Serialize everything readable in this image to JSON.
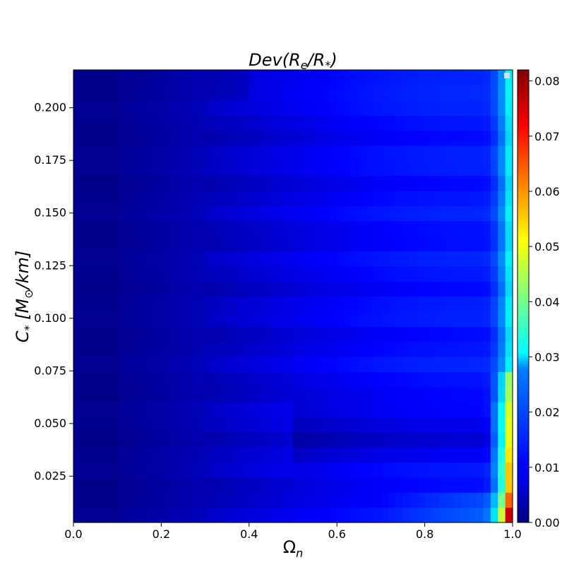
{
  "chart_data": {
    "type": "heatmap",
    "title": "Dev(R_e/R_*)",
    "title_parts": {
      "main": "Dev(R",
      "sub1": "e",
      "mid": "/R",
      "sub2": "*",
      "end": ")"
    },
    "xlabel_parts": {
      "main": "Ω",
      "sub": "n"
    },
    "ylabel_parts": {
      "main": "C",
      "sub": "*",
      "rest": " [M",
      "sub2": "⊙",
      "end": "/km]"
    },
    "xlim": [
      0.0,
      1.0
    ],
    "ylim": [
      0.003,
      0.218
    ],
    "x_ticks": [
      0.0,
      0.2,
      0.4,
      0.6,
      0.8,
      1.0
    ],
    "x_tick_labels": [
      "0.0",
      "0.2",
      "0.4",
      "0.6",
      "0.8",
      "1.0"
    ],
    "y_ticks": [
      0.025,
      0.05,
      0.075,
      0.1,
      0.125,
      0.15,
      0.175,
      0.2
    ],
    "y_tick_labels": [
      "0.025",
      "0.050",
      "0.075",
      "0.100",
      "0.125",
      "0.150",
      "0.175",
      "0.200"
    ],
    "colorbar": {
      "colormap": "jet",
      "range": [
        0.0,
        0.082
      ],
      "ticks": [
        0.0,
        0.01,
        0.02,
        0.03,
        0.04,
        0.05,
        0.06,
        0.07,
        0.08
      ],
      "tick_labels": [
        "0.00",
        "0.01",
        "0.02",
        "0.03",
        "0.04",
        "0.05",
        "0.06",
        "0.07",
        "0.08"
      ]
    },
    "grid": false,
    "legend": "top-right (empty marker)",
    "colors": {
      "background": "#ffffff",
      "axis": "#000000",
      "legend_marker": "#dddddd"
    }
  }
}
